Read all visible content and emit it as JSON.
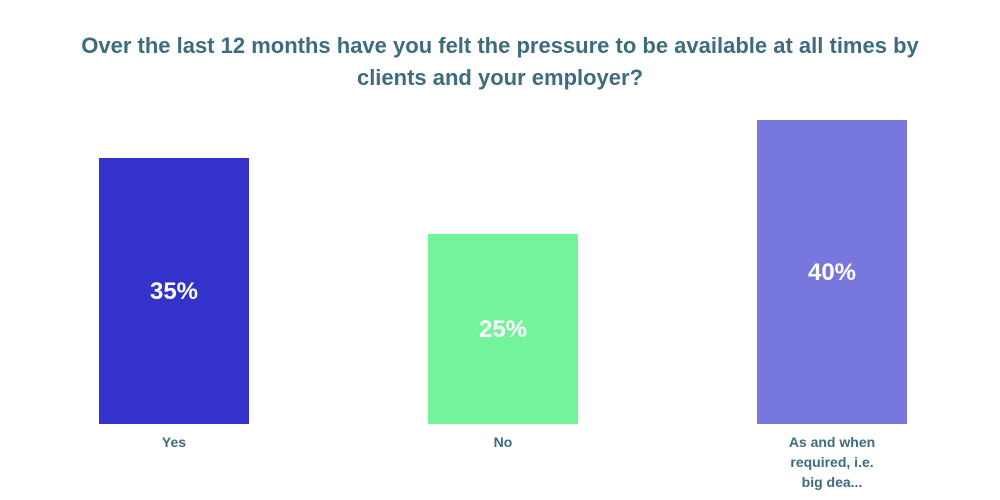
{
  "chart_data": {
    "type": "bar",
    "title": "Over the last 12 months have you felt the pressure to be available at all times by clients and your employer?",
    "categories": [
      "Yes",
      "No",
      "As and when required, i.e. big dea..."
    ],
    "category_label_lines": [
      [
        "Yes"
      ],
      [
        "No"
      ],
      [
        "As and when",
        "required, i.e.",
        "big dea..."
      ]
    ],
    "values": [
      35,
      25,
      40
    ],
    "value_labels": [
      "35%",
      "25%",
      "40%"
    ],
    "colors": [
      "#3333cc",
      "#73f39c",
      "#7777dd"
    ],
    "xlabel": "",
    "ylabel": "",
    "ylim": [
      0,
      40
    ],
    "grid": false,
    "legend": "none"
  }
}
